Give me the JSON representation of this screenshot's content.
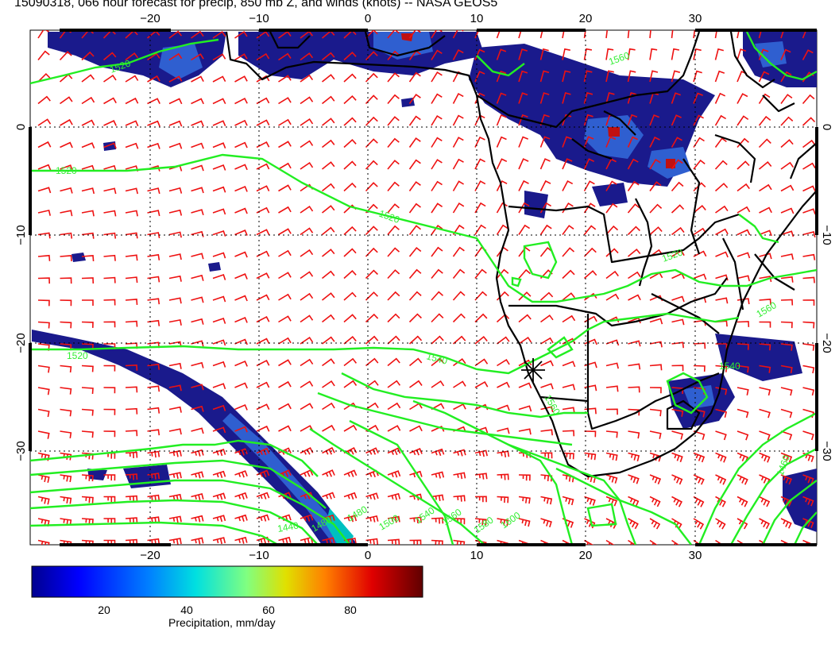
{
  "title": "15090318, 066 hour forecast for precip, 850 mb Z, and winds (knots) -- NASA GEOS5",
  "map": {
    "lon_ticks_top": [
      "−20",
      "−10",
      "0",
      "10",
      "20",
      "30"
    ],
    "lon_ticks_bottom": [
      "−20",
      "−10",
      "0",
      "10",
      "20",
      "30"
    ],
    "lat_ticks_left": [
      "0",
      "−10",
      "−20",
      "−30"
    ],
    "lat_ticks_right": [
      "0",
      "−10",
      "−20",
      "−30"
    ],
    "contour_labels": [
      "1520",
      "1520",
      "1520",
      "1520",
      "1540",
      "1560",
      "1560",
      "1540",
      "1560",
      "1480",
      "1500",
      "1480",
      "1540",
      "1560",
      "1580",
      "1600",
      "1440",
      "1460",
      "1520"
    ],
    "colors": {
      "contour": "#22ee22",
      "barb": "#ee1111",
      "coast": "#000000",
      "precip_dark": "#1a1a8c",
      "precip_mid": "#2f5fd0",
      "precip_hot": "#c01010"
    }
  },
  "colorbar": {
    "labels": [
      "20",
      "40",
      "60",
      "80"
    ],
    "title": "Precipitation, mm/day"
  }
}
